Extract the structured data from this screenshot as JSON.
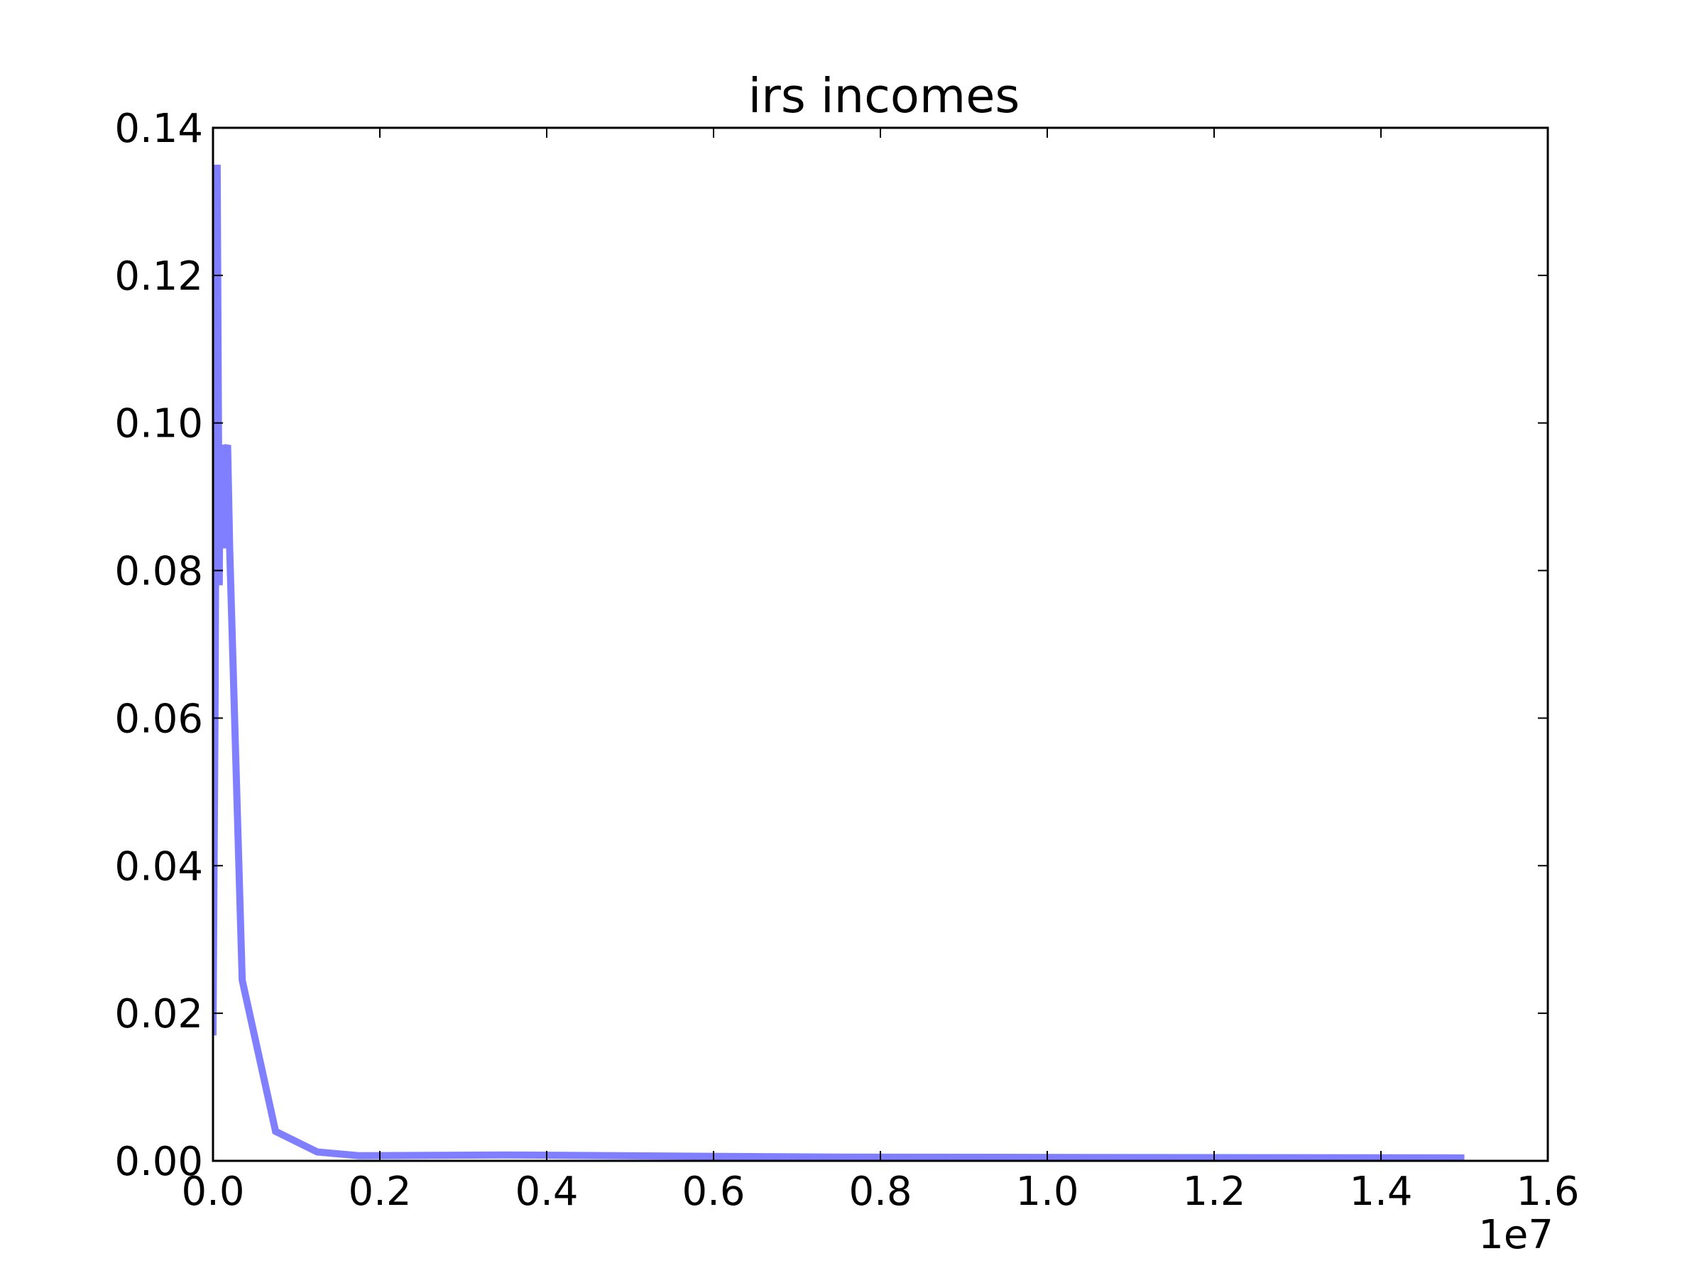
{
  "chart_data": {
    "type": "line",
    "title": "irs incomes",
    "xlabel": "",
    "ylabel": "",
    "x_offset_label": "1e7",
    "xlim": [
      0,
      1.6
    ],
    "ylim": [
      0,
      0.14
    ],
    "x_ticks": [
      0.0,
      0.2,
      0.4,
      0.6,
      0.8,
      1.0,
      1.2,
      1.4,
      1.6
    ],
    "x_tick_labels": [
      "0.0",
      "0.2",
      "0.4",
      "0.6",
      "0.8",
      "1.0",
      "1.2",
      "1.4",
      "1.6"
    ],
    "y_ticks": [
      0.0,
      0.02,
      0.04,
      0.06,
      0.08,
      0.1,
      0.12,
      0.14
    ],
    "y_tick_labels": [
      "0.00",
      "0.02",
      "0.04",
      "0.06",
      "0.08",
      "0.10",
      "0.12",
      "0.14"
    ],
    "grid": false,
    "series": [
      {
        "color": "#7f7fff",
        "x": [
          0.0,
          0.0025,
          0.005,
          0.0075,
          0.0085,
          0.0095,
          0.0105,
          0.0115,
          0.0125,
          0.015,
          0.0175,
          0.02,
          0.035,
          0.075,
          0.125,
          0.175,
          0.35,
          0.75,
          1.5
        ],
        "y": [
          0.017,
          0.062,
          0.135,
          0.078,
          0.097,
          0.089,
          0.091,
          0.083,
          0.097,
          0.096,
          0.097,
          0.083,
          0.0245,
          0.004,
          0.0012,
          0.0007,
          0.0008,
          0.0005,
          0.0004
        ]
      }
    ]
  }
}
